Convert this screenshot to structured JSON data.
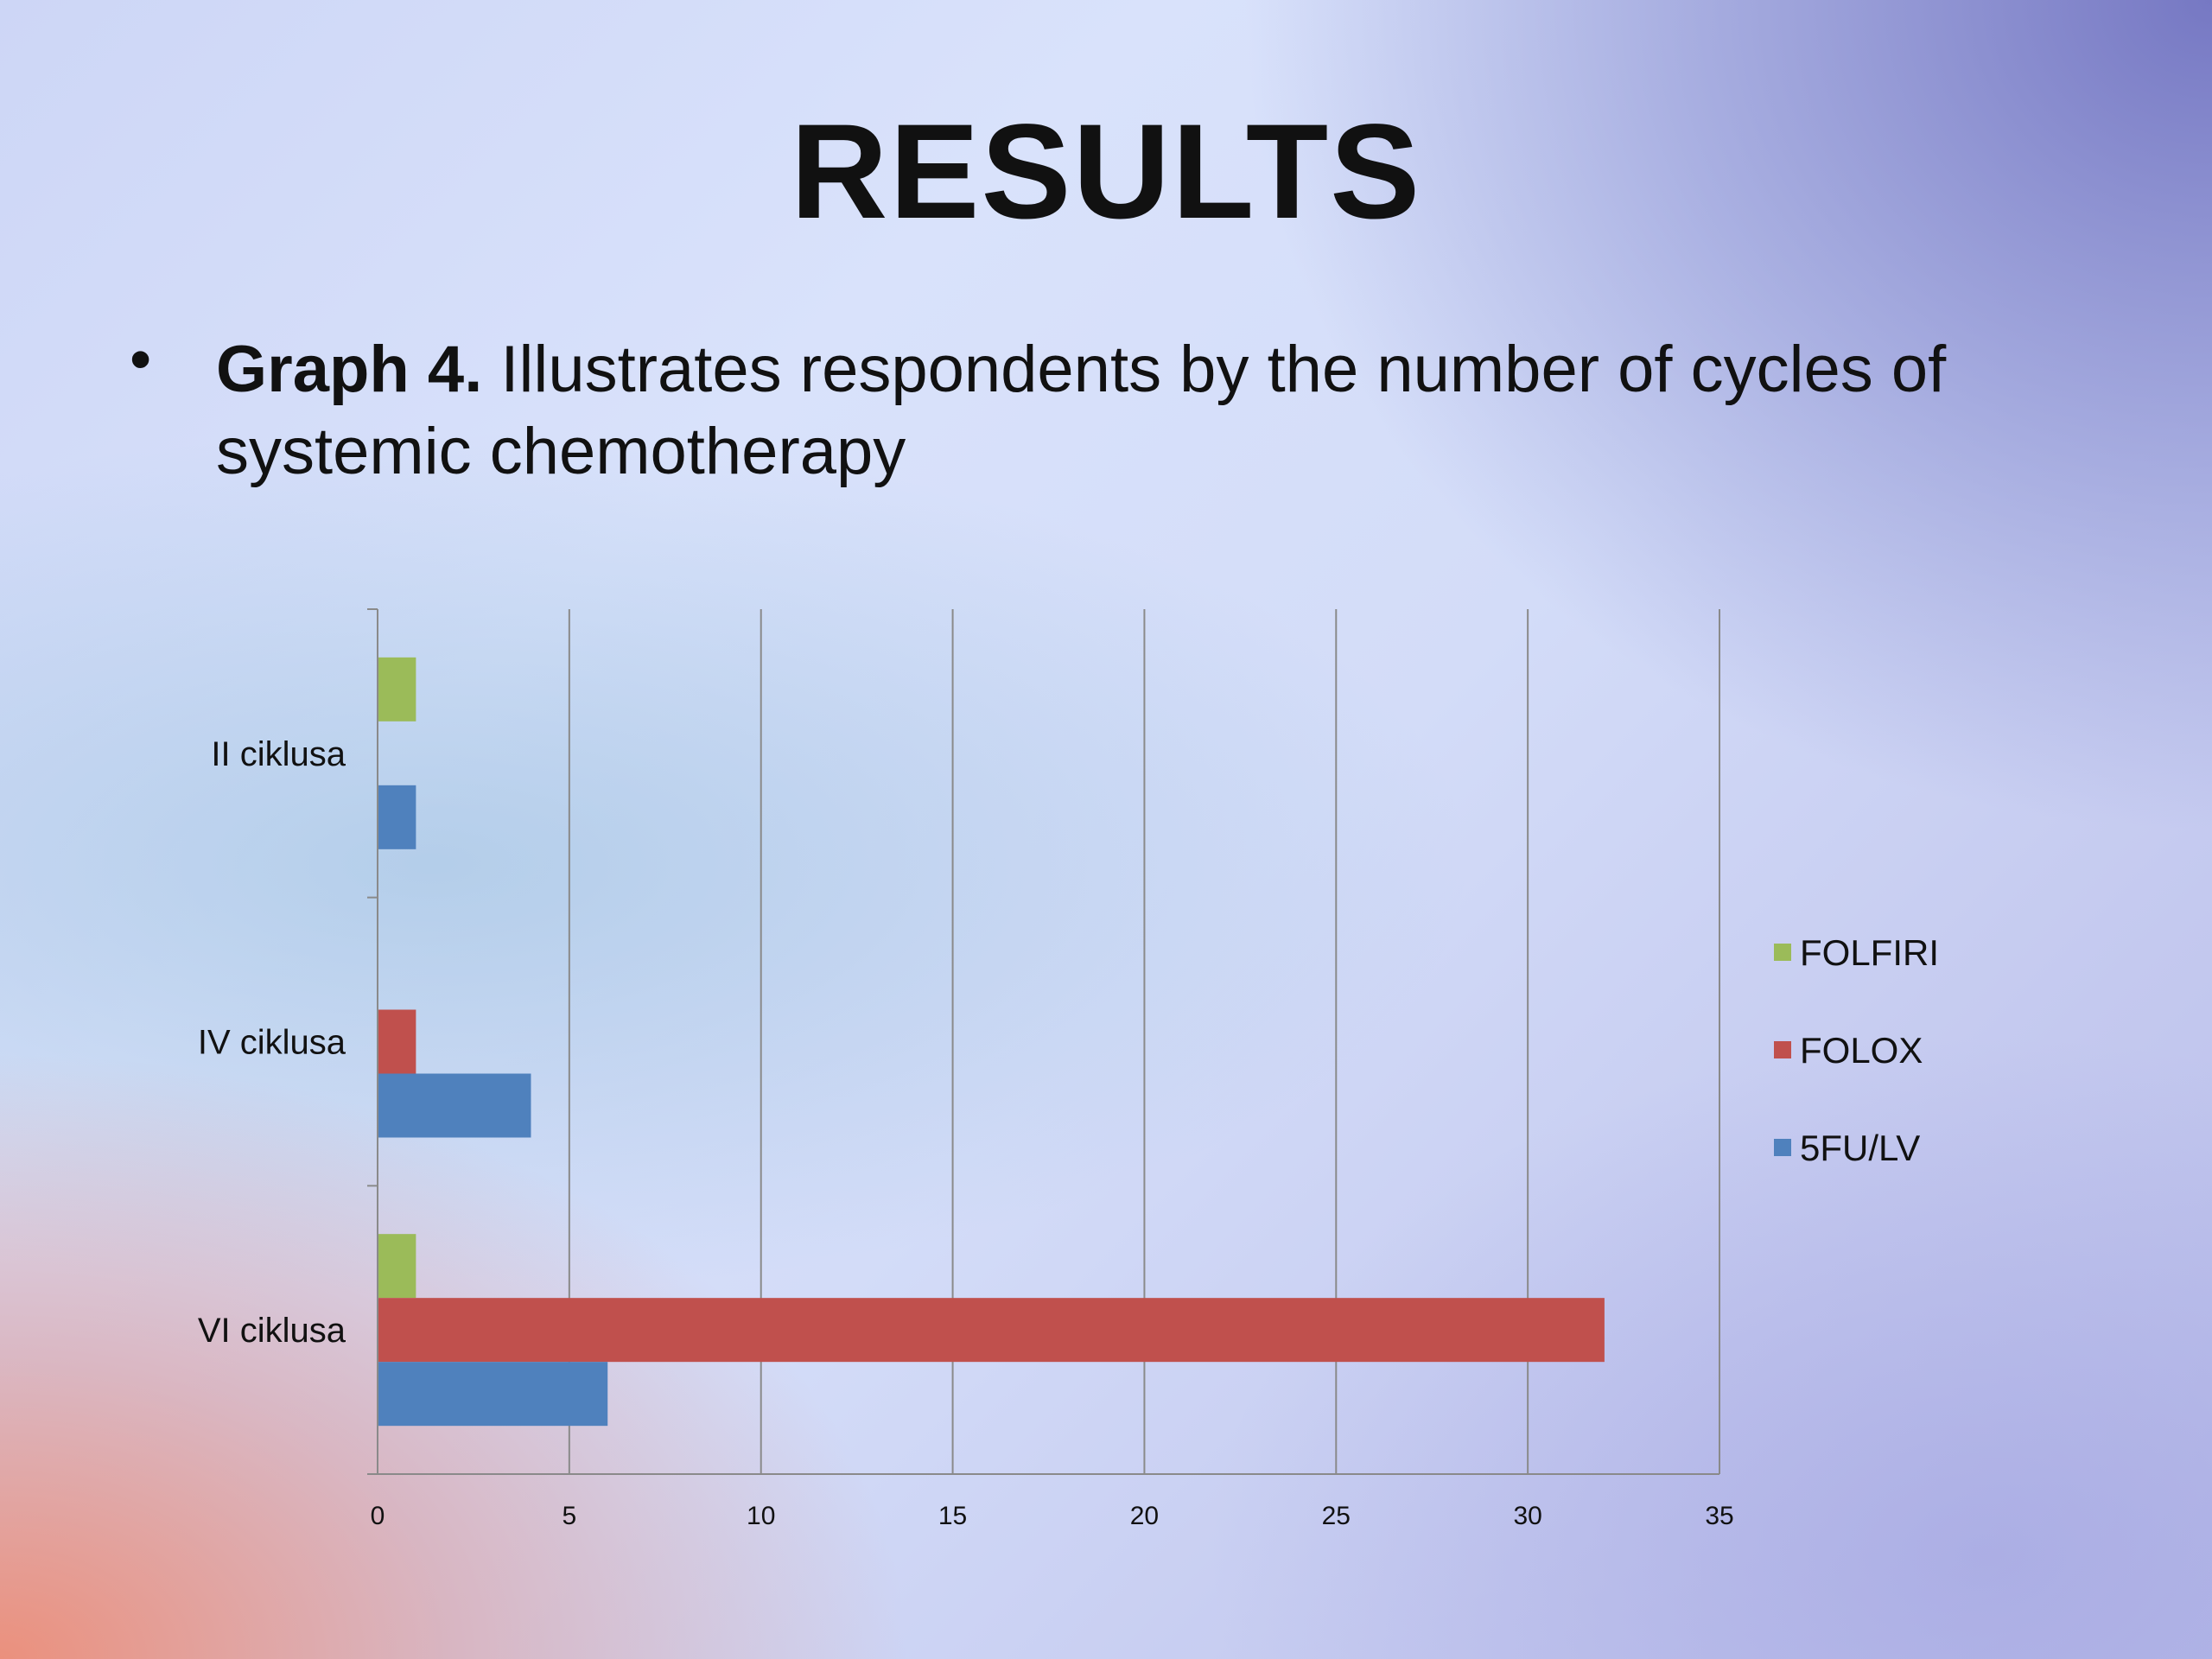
{
  "slide": {
    "title": "RESULTS",
    "bullet": "•",
    "subtitle_bold": "Graph 4.",
    "subtitle_rest": " Illustrates respondents by the number of cycles of systemic chemotherapy"
  },
  "chart_data": {
    "type": "bar",
    "orientation": "horizontal",
    "categories": [
      "II ciklusa",
      "IV ciklusa",
      "VI ciklusa"
    ],
    "series": [
      {
        "name": "FOLFIRI",
        "color": "#9bbb59",
        "values": [
          1,
          0,
          1
        ]
      },
      {
        "name": "FOLOX",
        "color": "#c0504d",
        "values": [
          0,
          1,
          32
        ]
      },
      {
        "name": "5FU/LV",
        "color": "#4f81bd",
        "values": [
          1,
          4,
          6
        ]
      }
    ],
    "xlim": [
      0,
      35
    ],
    "xticks": [
      0,
      5,
      10,
      15,
      20,
      25,
      30,
      35
    ],
    "grid": "vertical",
    "legend": "right"
  }
}
